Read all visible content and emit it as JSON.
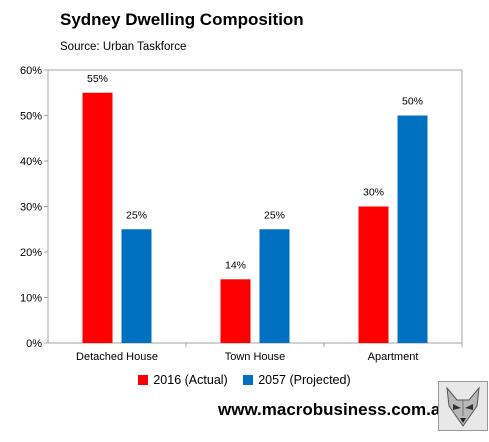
{
  "header": {
    "title": "Sydney Dwelling Composition",
    "subtitle": "Source: Urban Taskforce"
  },
  "footer": {
    "website": "www.macrobusiness.com.au"
  },
  "chart_data": {
    "type": "bar",
    "title": "Sydney Dwelling Composition",
    "subtitle": "Source: Urban Taskforce",
    "xlabel": "",
    "ylabel": "",
    "categories": [
      "Detached House",
      "Town House",
      "Apartment"
    ],
    "series": [
      {
        "name": "2016 (Actual)",
        "color": "#ff0000",
        "values": [
          55,
          14,
          30
        ],
        "labels": [
          "55%",
          "14%",
          "30%"
        ]
      },
      {
        "name": "2057 (Projected)",
        "color": "#0070c0",
        "values": [
          25,
          25,
          50
        ],
        "labels": [
          "25%",
          "25%",
          "50%"
        ]
      }
    ],
    "ylim": [
      0,
      60
    ],
    "yticks": [
      "0%",
      "10%",
      "20%",
      "30%",
      "40%",
      "50%",
      "60%"
    ],
    "grid": false,
    "legend_position": "bottom"
  }
}
